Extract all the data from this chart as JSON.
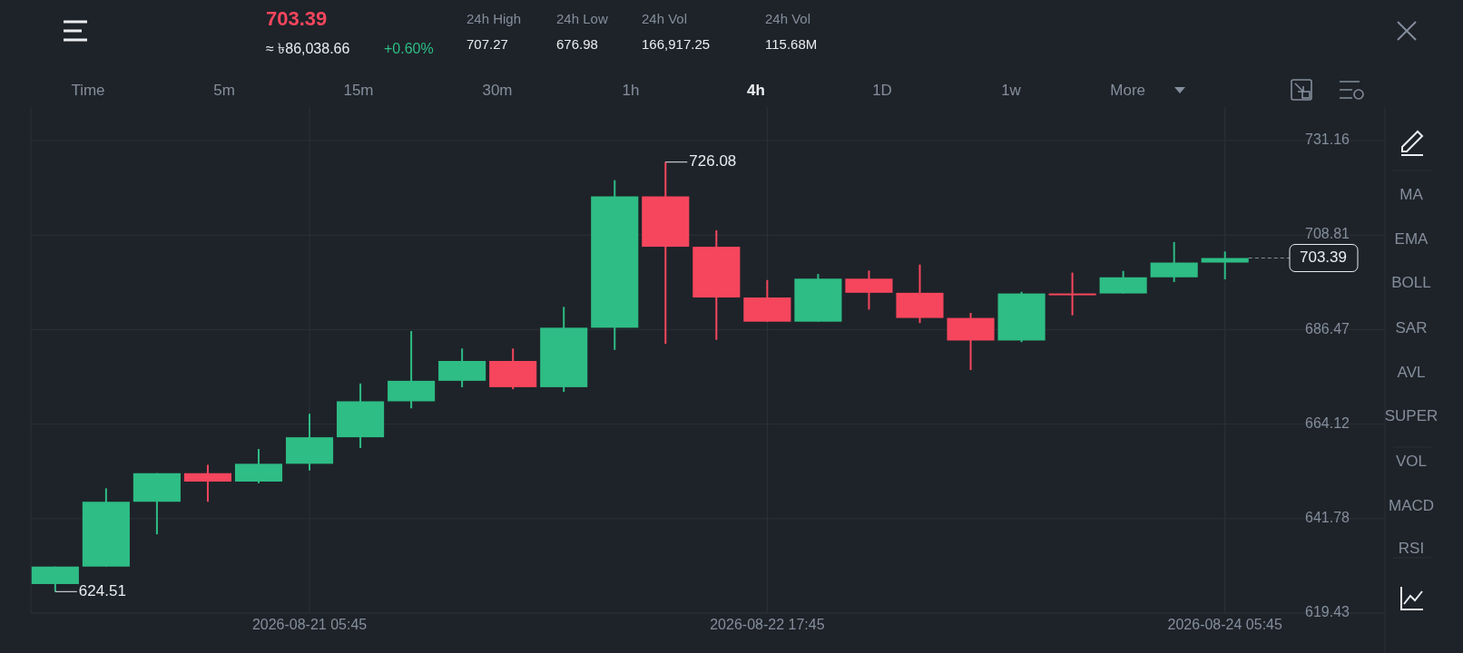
{
  "chart_data": {
    "type": "candlestick",
    "x": [
      "2026-08-20T09:45",
      "2026-08-20T13:45",
      "2026-08-20T17:45",
      "2026-08-20T21:45",
      "2026-08-21T01:45",
      "2026-08-21T05:45",
      "2026-08-21T09:45",
      "2026-08-21T13:45",
      "2026-08-21T17:45",
      "2026-08-21T21:45",
      "2026-08-22T01:45",
      "2026-08-22T05:45",
      "2026-08-22T09:45",
      "2026-08-22T13:45",
      "2026-08-22T17:45",
      "2026-08-22T21:45",
      "2026-08-23T01:45",
      "2026-08-23T05:45",
      "2026-08-23T09:45",
      "2026-08-23T13:45",
      "2026-08-23T17:45",
      "2026-08-23T21:45",
      "2026-08-24T01:45",
      "2026-08-24T05:45"
    ],
    "xlim": [
      "2026-08-20T07:50",
      "2026-08-24T18:20"
    ],
    "xticks": [
      {
        "value": "2026-08-21T05:45",
        "label": "2026-08-21 05:45"
      },
      {
        "value": "2026-08-22T17:45",
        "label": "2026-08-22 17:45"
      },
      {
        "value": "2026-08-24T05:45",
        "label": "2026-08-24 05:45"
      }
    ],
    "ohlc": [
      [
        626.3,
        630.43,
        624.51,
        630.43
      ],
      [
        630.43,
        648.94,
        630.43,
        645.76
      ],
      [
        645.76,
        652.51,
        638.06,
        652.51
      ],
      [
        652.51,
        654.5,
        645.76,
        650.53
      ],
      [
        650.53,
        658.23,
        650.13,
        654.74
      ],
      [
        654.74,
        666.57,
        653.15,
        661.01
      ],
      [
        661.01,
        673.72,
        658.47,
        669.51
      ],
      [
        669.51,
        686.12,
        667.85,
        674.36
      ],
      [
        674.36,
        681.99,
        672.85,
        679.05
      ],
      [
        679.05,
        681.99,
        672.37,
        672.85
      ],
      [
        672.85,
        691.84,
        671.74,
        686.91
      ],
      [
        686.91,
        721.79,
        681.67,
        717.97
      ],
      [
        717.97,
        726.08,
        683.1,
        706.06
      ],
      [
        706.06,
        709.95,
        684.05,
        694.06
      ],
      [
        694.06,
        698.19,
        688.34,
        688.34
      ],
      [
        688.34,
        699.62,
        688.34,
        698.51
      ],
      [
        698.51,
        700.42,
        691.2,
        695.17
      ],
      [
        695.17,
        701.85,
        688.02,
        689.22
      ],
      [
        689.22,
        690.41,
        676.9,
        683.89
      ],
      [
        683.89,
        695.41,
        683.5,
        695.01
      ],
      [
        695.01,
        699.94,
        689.85,
        694.9
      ],
      [
        695.01,
        700.34,
        695.01,
        698.83
      ],
      [
        698.83,
        707.17,
        697.72,
        702.32
      ],
      [
        702.32,
        704.94,
        698.35,
        703.39
      ]
    ],
    "colors": [
      "#2ebd85",
      "#2ebd85",
      "#2ebd85",
      "#f6465d",
      "#2ebd85",
      "#2ebd85",
      "#2ebd85",
      "#2ebd85",
      "#2ebd85",
      "#f6465d",
      "#2ebd85",
      "#2ebd85",
      "#f6465d",
      "#f6465d",
      "#f6465d",
      "#2ebd85",
      "#f6465d",
      "#f6465d",
      "#f6465d",
      "#2ebd85",
      "#f6465d",
      "#2ebd85",
      "#2ebd85",
      "#2ebd85"
    ],
    "ylim": [
      619.43,
      739.1
    ],
    "yticks": [
      619.43,
      641.78,
      664.12,
      686.47,
      708.81,
      731.16
    ],
    "grid": true,
    "ref_lines": [
      {
        "axis": "y",
        "value": 703.39,
        "label": "703.39",
        "line_style": "dashed",
        "color": "#848e9c"
      }
    ],
    "annotations": [
      "703.39",
      "≈ ৳86,038.66",
      "+0.60%",
      "24h High",
      "707.27",
      "24h Low",
      "676.98",
      "24h Vol",
      "166,917.25",
      "24h Vol",
      "115.68M",
      "Time",
      "5m",
      "15m",
      "30m",
      "1h",
      "4h",
      "1D",
      "1w",
      "More",
      "MA",
      "EMA",
      "BOLL",
      "SAR",
      "AVL",
      "SUPER",
      "VOL",
      "MACD",
      "RSI",
      {
        "text": "726.08",
        "x": "2026-08-22T09:45",
        "y": 726.08
      },
      {
        "text": "624.51",
        "x": "2026-08-20T09:45",
        "y": 624.51
      }
    ]
  }
}
